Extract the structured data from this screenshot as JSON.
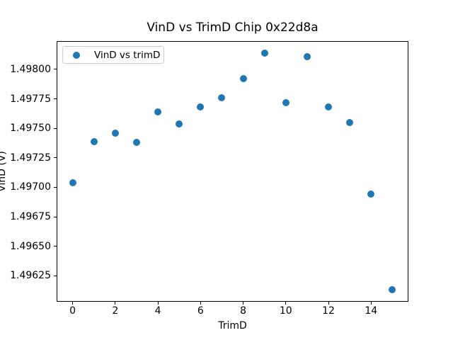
{
  "chart_data": {
    "type": "scatter",
    "title": "VinD vs TrimD Chip 0x22d8a",
    "xlabel": "TrimD",
    "ylabel": "VinD (V)",
    "legend": {
      "entries": [
        "VinD vs trimD"
      ],
      "position": "upper left"
    },
    "marker": {
      "shape": "circle",
      "color": "#1f77b4"
    },
    "x": [
      0,
      1,
      2,
      3,
      4,
      5,
      6,
      7,
      8,
      9,
      10,
      11,
      12,
      13,
      14,
      15
    ],
    "y": [
      1.49704,
      1.49739,
      1.49746,
      1.49738,
      1.49764,
      1.49754,
      1.49768,
      1.49776,
      1.49792,
      1.49814,
      1.49772,
      1.49811,
      1.49768,
      1.49755,
      1.49694,
      1.49613
    ],
    "xlim": [
      -0.75,
      15.75
    ],
    "ylim": [
      1.49603,
      1.49824
    ],
    "xticks": [
      0,
      2,
      4,
      6,
      8,
      10,
      12,
      14
    ],
    "xtick_labels": [
      "0",
      "2",
      "4",
      "6",
      "8",
      "10",
      "12",
      "14"
    ],
    "yticks": [
      1.49625,
      1.4965,
      1.49675,
      1.497,
      1.49725,
      1.4975,
      1.49775,
      1.498
    ],
    "ytick_labels": [
      "1.49625",
      "1.49650",
      "1.49675",
      "1.49700",
      "1.49725",
      "1.49750",
      "1.49775",
      "1.49800"
    ],
    "grid": false,
    "background_color": "#ffffff"
  }
}
